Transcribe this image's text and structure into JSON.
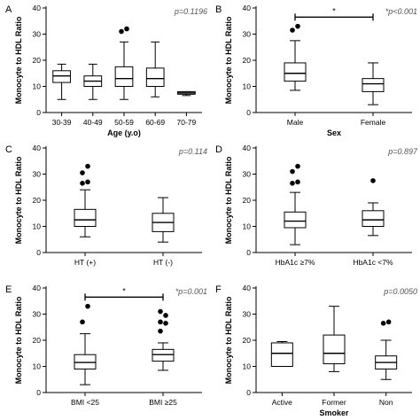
{
  "chart_data": [
    {
      "panel": "A",
      "type": "box",
      "pvalue": "p=0.1196",
      "significance": null,
      "ylabel": "Monocyte to HDL Ratio",
      "xlabel": "Age (y.o)",
      "ylim": [
        0,
        40
      ],
      "yticks": [
        0,
        10,
        20,
        30,
        40
      ],
      "categories": [
        "30-39",
        "40-49",
        "50-59",
        "60-69",
        "70-79"
      ],
      "boxes": [
        {
          "min": 5,
          "q1": 11.5,
          "median": 14,
          "q3": 16,
          "max": 18.5,
          "outliers": []
        },
        {
          "min": 5,
          "q1": 10,
          "median": 12,
          "q3": 14,
          "max": 18.5,
          "outliers": []
        },
        {
          "min": 5,
          "q1": 10,
          "median": 13,
          "q3": 17.5,
          "max": 27,
          "outliers": [
            31,
            32
          ]
        },
        {
          "min": 6,
          "q1": 10,
          "median": 13,
          "q3": 17,
          "max": 27,
          "outliers": []
        },
        {
          "min": 6.5,
          "q1": 7,
          "median": 7.5,
          "q3": 8,
          "max": 8,
          "outliers": []
        }
      ]
    },
    {
      "panel": "B",
      "type": "box",
      "pvalue": "*p<0.001",
      "significance": {
        "from": 0,
        "to": 1,
        "y": 36.5,
        "label": "*"
      },
      "ylabel": "Monocyte to HDL Ratio",
      "xlabel": "Sex",
      "ylim": [
        0,
        40
      ],
      "yticks": [
        0,
        10,
        20,
        30,
        40
      ],
      "categories": [
        "Male",
        "Female"
      ],
      "boxes": [
        {
          "min": 8.5,
          "q1": 12,
          "median": 15,
          "q3": 19,
          "max": 27.5,
          "outliers": [
            31.5,
            33
          ]
        },
        {
          "min": 3,
          "q1": 8,
          "median": 11,
          "q3": 13,
          "max": 19,
          "outliers": []
        }
      ]
    },
    {
      "panel": "C",
      "type": "box",
      "pvalue": "p=0.114",
      "significance": null,
      "ylabel": "Monocyte to HDL Ratio",
      "xlabel": "",
      "ylim": [
        0,
        40
      ],
      "yticks": [
        0,
        10,
        20,
        30,
        40
      ],
      "categories": [
        "HT (+)",
        "HT (-)"
      ],
      "boxes": [
        {
          "min": 6,
          "q1": 10,
          "median": 12.5,
          "q3": 16.5,
          "max": 24,
          "outliers": [
            26.5,
            27,
            30.5,
            33
          ]
        },
        {
          "min": 4,
          "q1": 8,
          "median": 11.5,
          "q3": 15,
          "max": 21,
          "outliers": []
        }
      ]
    },
    {
      "panel": "D",
      "type": "box",
      "pvalue": "p=0.897",
      "significance": null,
      "ylabel": "Monocyte to HDL Ratio",
      "xlabel": "",
      "ylim": [
        0,
        40
      ],
      "yticks": [
        0,
        10,
        20,
        30,
        40
      ],
      "categories": [
        "HbA1c ≥7%",
        "HbA1c <7%"
      ],
      "boxes": [
        {
          "min": 3,
          "q1": 9.5,
          "median": 12,
          "q3": 15.5,
          "max": 23,
          "outliers": [
            26.5,
            27,
            31,
            33
          ]
        },
        {
          "min": 6.5,
          "q1": 10,
          "median": 12.5,
          "q3": 16,
          "max": 19,
          "outliers": [
            27.5
          ]
        }
      ]
    },
    {
      "panel": "E",
      "type": "box",
      "pvalue": "*p=0.001",
      "significance": {
        "from": 0,
        "to": 1,
        "y": 36.5,
        "label": "*"
      },
      "ylabel": "Monocyte to HDL Ratio",
      "xlabel": "",
      "ylim": [
        0,
        40
      ],
      "yticks": [
        0,
        10,
        20,
        30,
        40
      ],
      "categories": [
        "BMI <25",
        "BMI ≥25"
      ],
      "boxes": [
        {
          "min": 3,
          "q1": 9,
          "median": 11.5,
          "q3": 14.5,
          "max": 22.5,
          "outliers": [
            27,
            33
          ]
        },
        {
          "min": 8.5,
          "q1": 12,
          "median": 14.5,
          "q3": 16.5,
          "max": 19,
          "outliers": [
            23.5,
            26.5,
            27,
            29.5,
            31
          ]
        }
      ]
    },
    {
      "panel": "F",
      "type": "box",
      "pvalue": "p=0.0050",
      "significance": null,
      "ylabel": "Monocyte to HDL Ratio",
      "xlabel": "Smoker",
      "ylim": [
        0,
        40
      ],
      "yticks": [
        0,
        10,
        20,
        30,
        40
      ],
      "categories": [
        "Active",
        "Former",
        "Non"
      ],
      "boxes": [
        {
          "min": 10,
          "q1": 10,
          "median": 15,
          "q3": 19,
          "max": 19.5,
          "outliers": []
        },
        {
          "min": 8,
          "q1": 11,
          "median": 15,
          "q3": 22,
          "max": 33,
          "outliers": []
        },
        {
          "min": 5,
          "q1": 9,
          "median": 11.5,
          "q3": 14,
          "max": 20,
          "outliers": [
            26.5,
            27
          ]
        }
      ]
    }
  ]
}
